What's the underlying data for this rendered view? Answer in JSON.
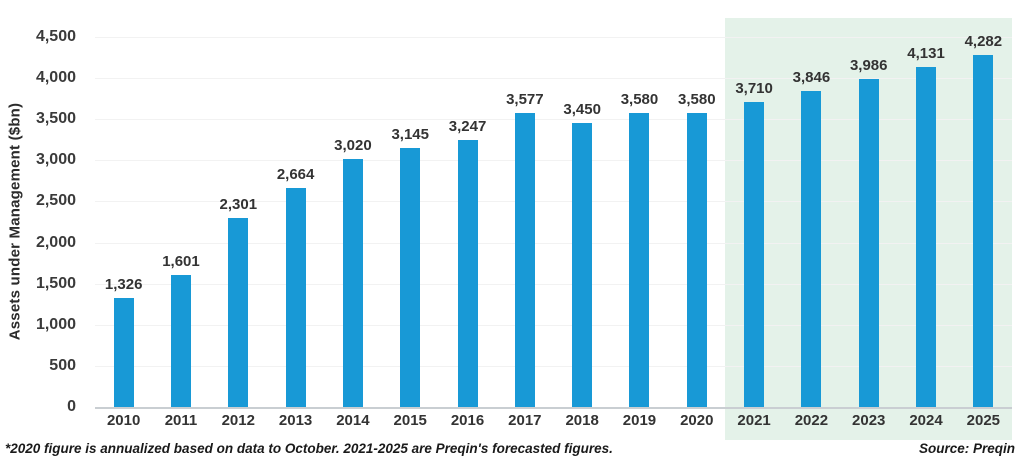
{
  "chart_data": {
    "type": "bar",
    "title": "",
    "xlabel": "",
    "ylabel": "Assets under Management ($bn)",
    "ylim": [
      0,
      4500
    ],
    "ytick_values": [
      0,
      500,
      1000,
      1500,
      2000,
      2500,
      3000,
      3500,
      4000,
      4500
    ],
    "ytick_labels": [
      "0",
      "500",
      "1,000",
      "1,500",
      "2,000",
      "2,500",
      "3,000",
      "3,500",
      "4,000",
      "4,500"
    ],
    "grid": "faint horizontal",
    "legend_position": "none",
    "categories": [
      "2010",
      "2011",
      "2012",
      "2013",
      "2014",
      "2015",
      "2016",
      "2017",
      "2018",
      "2019",
      "2020",
      "2021",
      "2022",
      "2023",
      "2024",
      "2025"
    ],
    "values": [
      1326,
      1601,
      2301,
      2664,
      3020,
      3145,
      3247,
      3577,
      3450,
      3580,
      3580,
      3710,
      3846,
      3986,
      4131,
      4282
    ],
    "value_labels": [
      "1,326",
      "1,601",
      "2,301",
      "2,664",
      "3,020",
      "3,145",
      "3,247",
      "3,577",
      "3,450",
      "3,580",
      "3,580",
      "3,710",
      "3,846",
      "3,986",
      "4,131",
      "4,282"
    ],
    "bar_color": "#1899d6",
    "forecast_highlight": {
      "categories": [
        "2021",
        "2022",
        "2023",
        "2024",
        "2025"
      ],
      "background_color": "#e4f2e9"
    }
  },
  "footnote": "*2020 figure is annualized based on data to October. 2021-2025 are Preqin's forecasted figures.",
  "source": "Source: Preqin"
}
